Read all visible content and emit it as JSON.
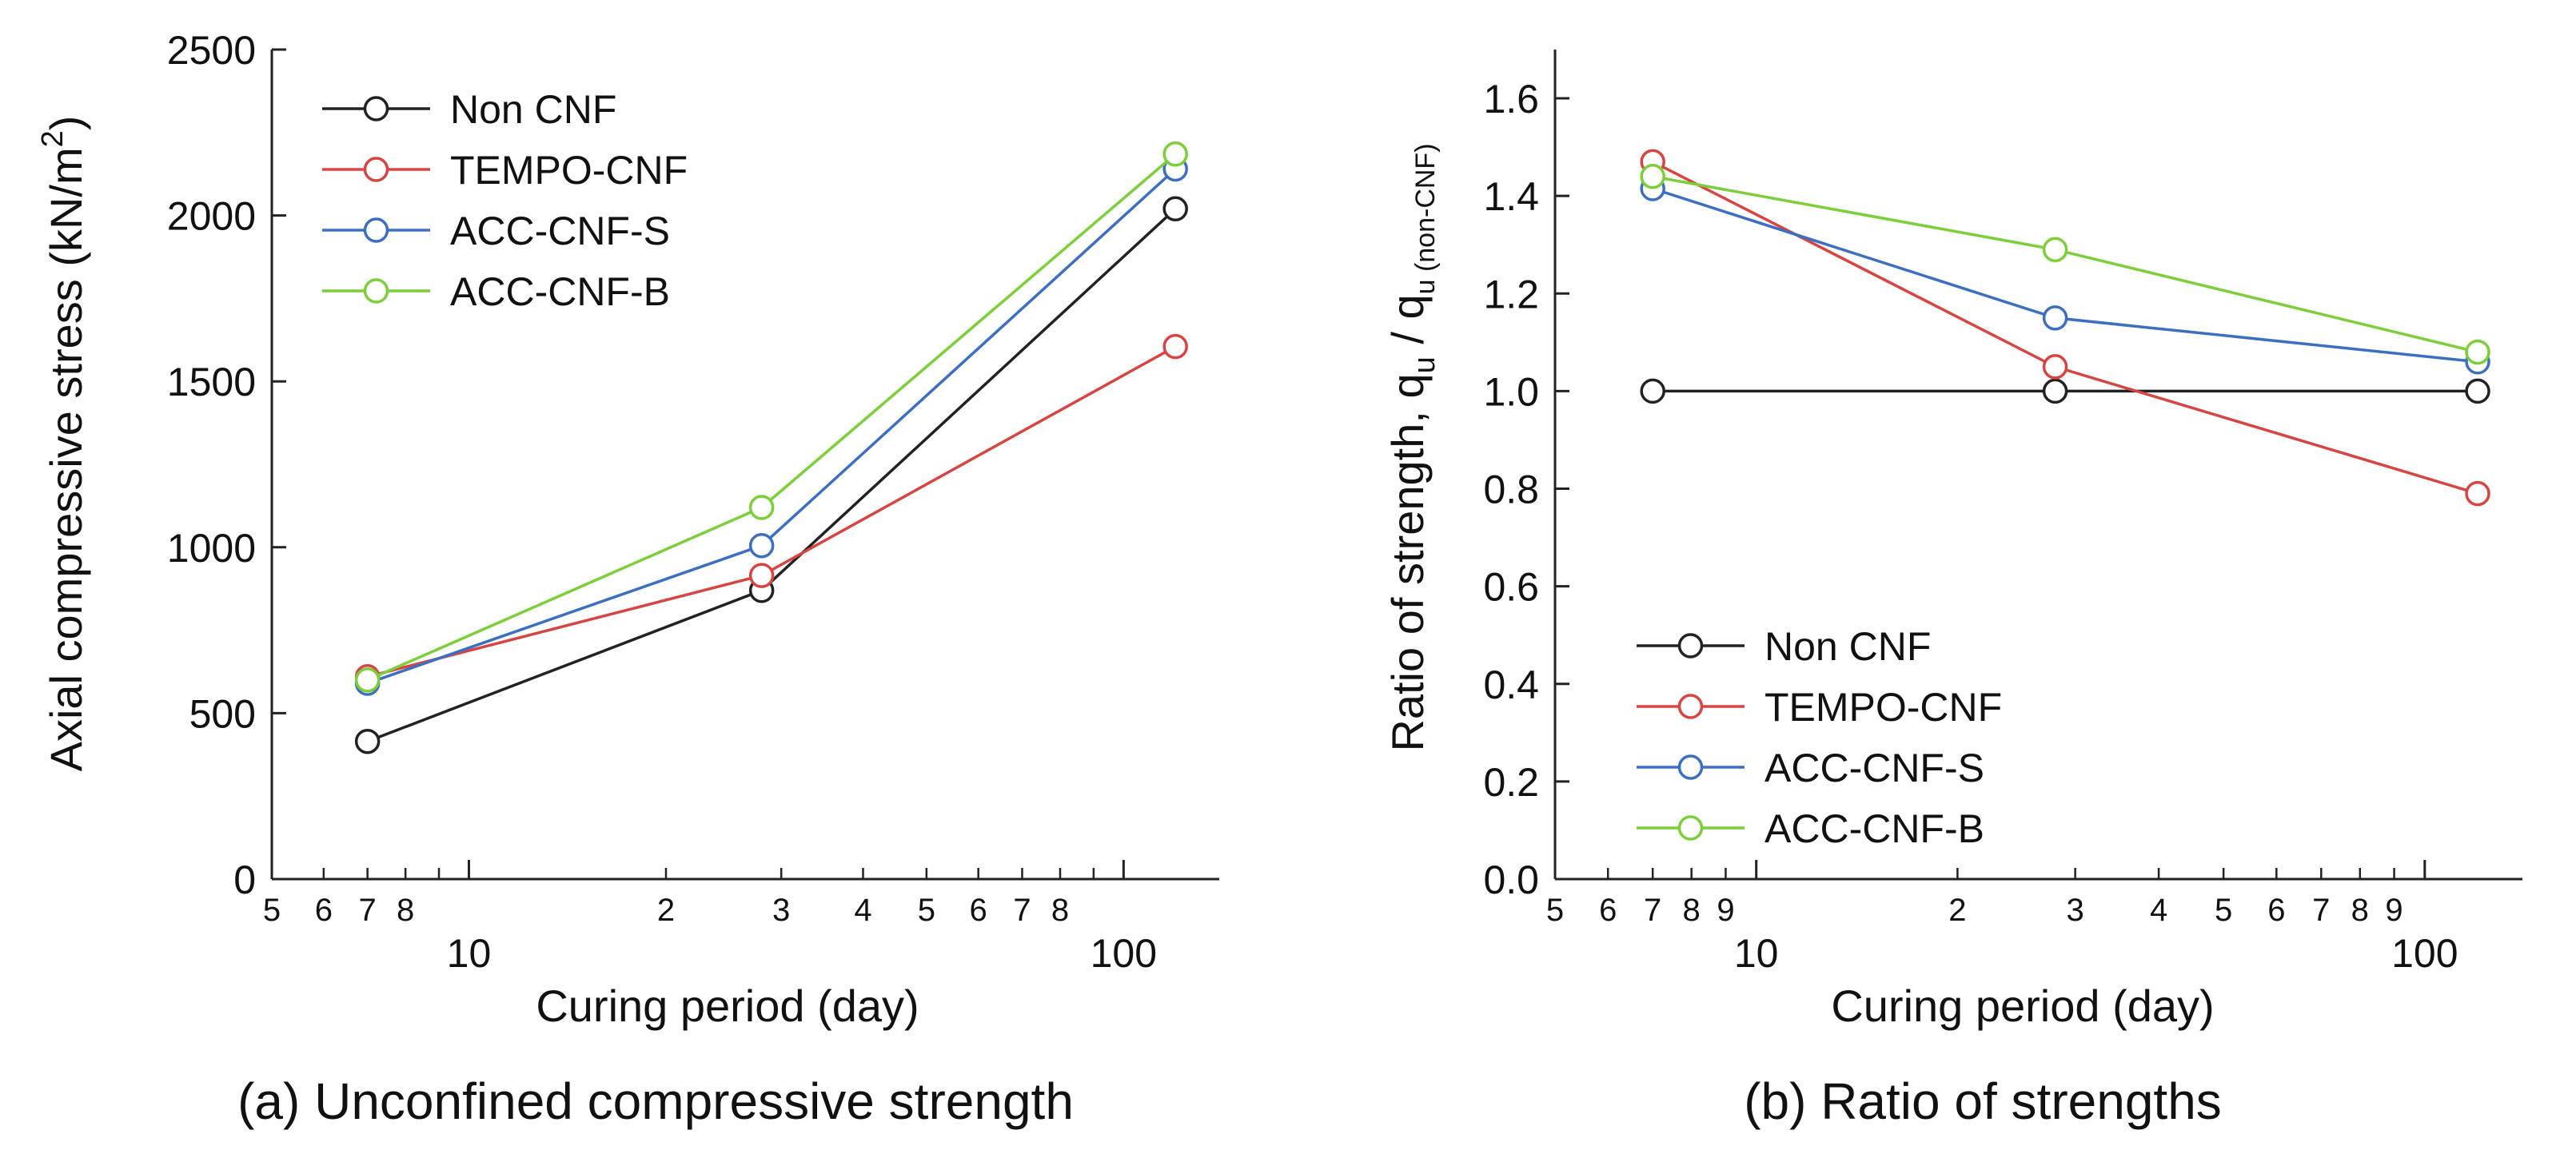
{
  "chart_data": [
    {
      "id": "a",
      "type": "line",
      "caption": "(a) Unconfined compressive strength",
      "xlabel": "Curing period (day)",
      "ylabel": "Axial compressive stress (kN/m",
      "ylabel_superscript": "2",
      "ylabel_close": ")",
      "x_scale": "log",
      "xlim": [
        5,
        140
      ],
      "ylim": [
        0,
        2500
      ],
      "y_ticks": [
        "0",
        "500",
        "1000",
        "1500",
        "2000",
        "2500"
      ],
      "x_major_ticks": [
        {
          "value": 10,
          "label": "10"
        },
        {
          "value": 100,
          "label": "100"
        }
      ],
      "x_minor_ticks": [
        {
          "value": 5,
          "label": "5"
        },
        {
          "value": 6,
          "label": "6"
        },
        {
          "value": 7,
          "label": "7"
        },
        {
          "value": 8,
          "label": "8"
        },
        {
          "value": 20,
          "label": "2"
        },
        {
          "value": 30,
          "label": "3"
        },
        {
          "value": 40,
          "label": "4"
        },
        {
          "value": 50,
          "label": "5"
        },
        {
          "value": 60,
          "label": "6"
        },
        {
          "value": 70,
          "label": "7"
        },
        {
          "value": 80,
          "label": "8"
        }
      ],
      "x_unlabeled_minor_ticks": [
        9,
        90
      ],
      "legend_position": "top-left",
      "series": [
        {
          "name": "Non CNF",
          "color": "#222222",
          "x": [
            7,
            28,
            120
          ],
          "y": [
            415,
            870,
            2020
          ]
        },
        {
          "name": "TEMPO-CNF",
          "color": "#d64541",
          "x": [
            7,
            28,
            120
          ],
          "y": [
            610,
            915,
            1605
          ]
        },
        {
          "name": "ACC-CNF-S",
          "color": "#3c6fc0",
          "x": [
            7,
            28,
            120
          ],
          "y": [
            590,
            1005,
            2140
          ]
        },
        {
          "name": "ACC-CNF-B",
          "color": "#7ccf3a",
          "x": [
            7,
            28,
            120
          ],
          "y": [
            600,
            1120,
            2185
          ]
        }
      ]
    },
    {
      "id": "b",
      "type": "line",
      "caption": "(b) Ratio of strengths",
      "xlabel": "Curing period (day)",
      "ylabel": "Ratio of strength, q",
      "ylabel_sub1": "u",
      "ylabel_mid": " / q",
      "ylabel_sub2": "u (non-CNF)",
      "x_scale": "log",
      "xlim": [
        5,
        140
      ],
      "ylim": [
        0,
        1.7
      ],
      "y_ticks": [
        "0.0",
        "0.2",
        "0.4",
        "0.6",
        "0.8",
        "1.0",
        "1.2",
        "1.4",
        "1.6"
      ],
      "x_major_ticks": [
        {
          "value": 10,
          "label": "10"
        },
        {
          "value": 100,
          "label": "100"
        }
      ],
      "x_minor_ticks": [
        {
          "value": 5,
          "label": "5"
        },
        {
          "value": 6,
          "label": "6"
        },
        {
          "value": 7,
          "label": "7"
        },
        {
          "value": 8,
          "label": "8"
        },
        {
          "value": 9,
          "label": "9"
        },
        {
          "value": 20,
          "label": "2"
        },
        {
          "value": 30,
          "label": "3"
        },
        {
          "value": 40,
          "label": "4"
        },
        {
          "value": 50,
          "label": "5"
        },
        {
          "value": 60,
          "label": "6"
        },
        {
          "value": 70,
          "label": "7"
        },
        {
          "value": 80,
          "label": "8"
        },
        {
          "value": 90,
          "label": "9"
        }
      ],
      "x_unlabeled_minor_ticks": [],
      "legend_position": "bottom-left",
      "series": [
        {
          "name": "Non CNF",
          "color": "#222222",
          "x": [
            7,
            28,
            120
          ],
          "y": [
            1.0,
            1.0,
            1.0
          ]
        },
        {
          "name": "TEMPO-CNF",
          "color": "#d64541",
          "x": [
            7,
            28,
            120
          ],
          "y": [
            1.47,
            1.05,
            0.79
          ]
        },
        {
          "name": "ACC-CNF-S",
          "color": "#3c6fc0",
          "x": [
            7,
            28,
            120
          ],
          "y": [
            1.415,
            1.15,
            1.06
          ]
        },
        {
          "name": "ACC-CNF-B",
          "color": "#7ccf3a",
          "x": [
            7,
            28,
            120
          ],
          "y": [
            1.44,
            1.29,
            1.08
          ]
        }
      ]
    }
  ]
}
